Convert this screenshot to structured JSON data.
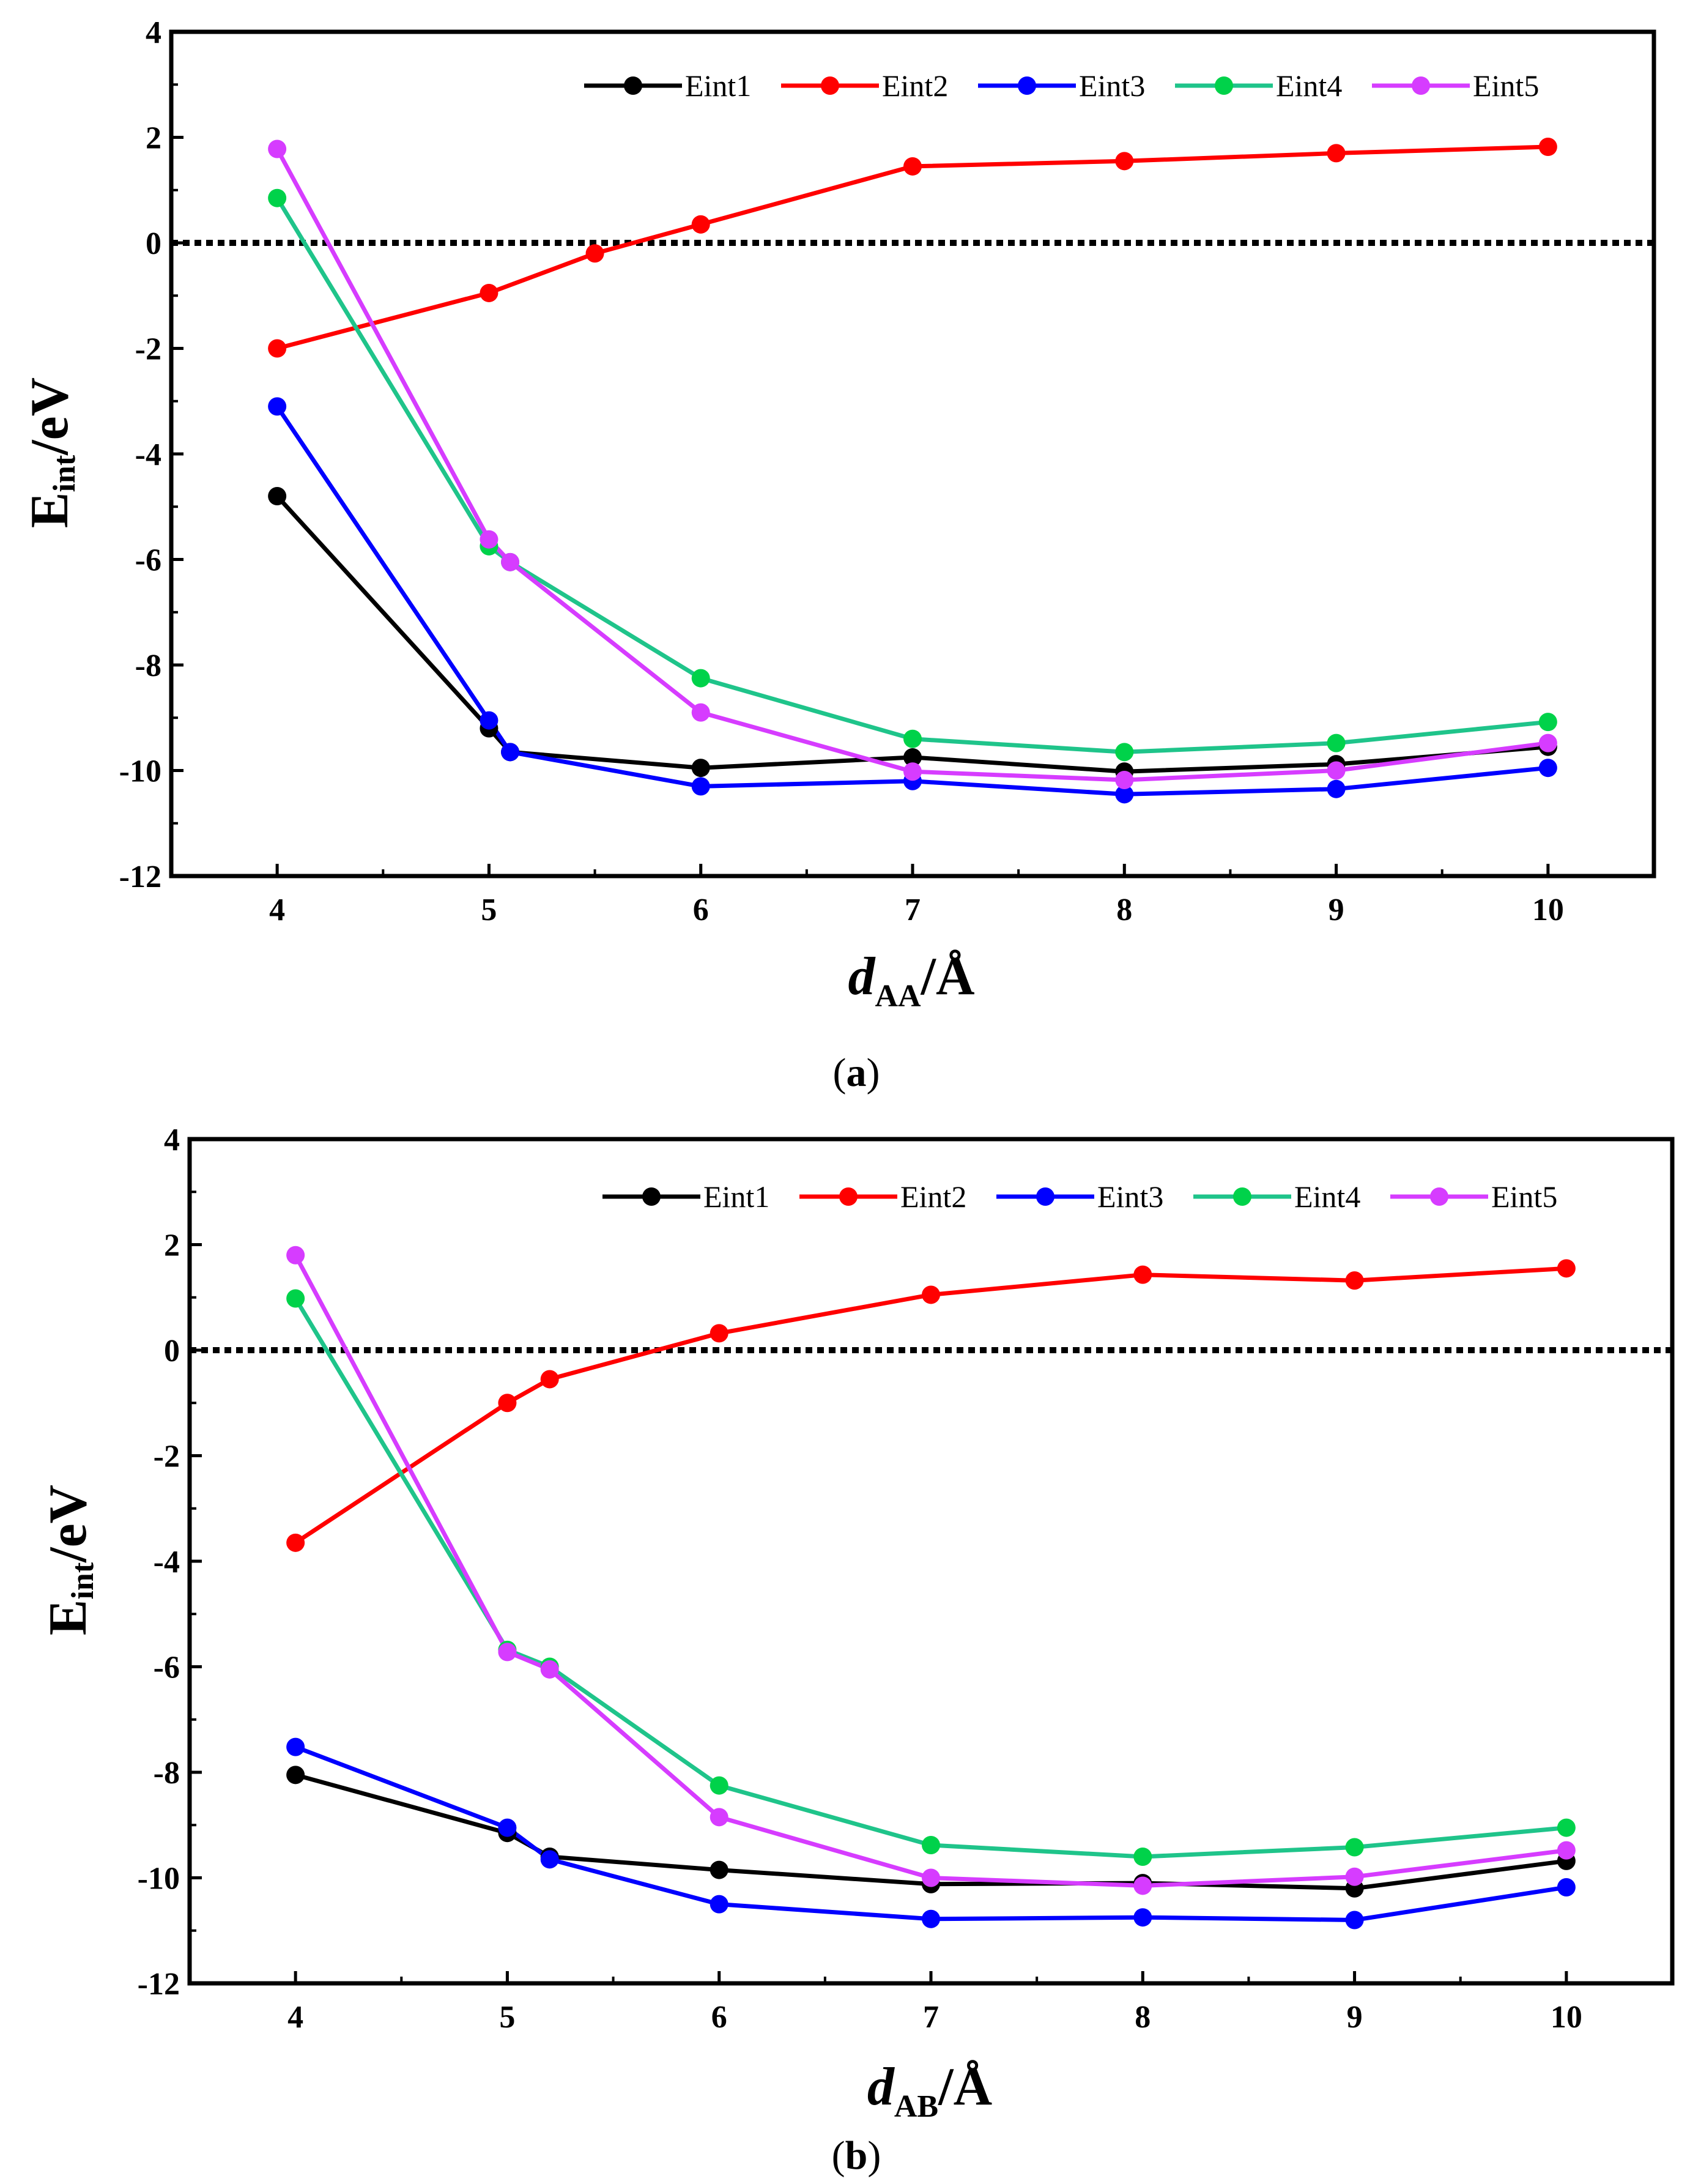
{
  "colors": {
    "Eint1": "#000000",
    "Eint2": "#ff0000",
    "Eint3": "#0000ff",
    "Eint4": "#00d24a",
    "Eint5": "#d63cff",
    "Eint4_line": "#1fc48a"
  },
  "chart_data": [
    {
      "type": "line",
      "panel": "a",
      "caption": {
        "open": "(",
        "letter": "a",
        "close": ")"
      },
      "title": "",
      "ylabel": {
        "main": "E",
        "sub": "int",
        "rest": "/eV"
      },
      "xlabel": {
        "main": "d",
        "sub": "AA",
        "rest": "/Å"
      },
      "xlim": [
        3.5,
        10.5
      ],
      "ylim": [
        -12,
        4
      ],
      "xticks": [
        4,
        5,
        6,
        7,
        8,
        9,
        10
      ],
      "yticks": [
        4,
        2,
        0,
        -2,
        -4,
        -6,
        -8,
        -10,
        -12
      ],
      "zero_line": 0,
      "legend_position": "top-right",
      "series": [
        {
          "name": "Eint1",
          "color": "#000000",
          "x": [
            4,
            5,
            5.1,
            6,
            7,
            8,
            9,
            10
          ],
          "y": [
            -4.8,
            -9.2,
            -9.65,
            -9.95,
            -9.75,
            -10.02,
            -9.88,
            -9.55
          ]
        },
        {
          "name": "Eint2",
          "color": "#ff0000",
          "x": [
            4,
            5,
            5.5,
            6,
            7,
            8,
            9,
            10
          ],
          "y": [
            -2.0,
            -0.95,
            -0.2,
            0.35,
            1.45,
            1.55,
            1.7,
            1.82
          ]
        },
        {
          "name": "Eint3",
          "color": "#0000ff",
          "x": [
            4,
            5,
            5.1,
            6,
            7,
            8,
            9,
            10
          ],
          "y": [
            -3.1,
            -9.05,
            -9.65,
            -10.3,
            -10.2,
            -10.45,
            -10.35,
            -9.95
          ]
        },
        {
          "name": "Eint4",
          "color": "#00d24a",
          "line_color": "#1fc48a",
          "x": [
            4,
            5,
            5.1,
            6,
            7,
            8,
            9,
            10
          ],
          "y": [
            0.85,
            -5.75,
            -6.05,
            -8.25,
            -9.4,
            -9.65,
            -9.48,
            -9.08
          ]
        },
        {
          "name": "Eint5",
          "color": "#d63cff",
          "x": [
            4,
            5,
            5.1,
            6,
            7,
            8,
            9,
            10
          ],
          "y": [
            1.78,
            -5.62,
            -6.05,
            -8.9,
            -10.02,
            -10.18,
            -10.0,
            -9.48
          ]
        }
      ]
    },
    {
      "type": "line",
      "panel": "b",
      "caption": {
        "open": "(",
        "letter": "b",
        "close": ")"
      },
      "title": "",
      "ylabel": {
        "main": "E",
        "sub": "int",
        "rest": "/eV"
      },
      "xlabel": {
        "main": "d",
        "sub": "AB",
        "rest": "/Å"
      },
      "xlim": [
        3.5,
        10.5
      ],
      "ylim": [
        -12,
        4
      ],
      "xticks": [
        4,
        5,
        6,
        7,
        8,
        9,
        10
      ],
      "yticks": [
        4,
        2,
        0,
        -2,
        -4,
        -6,
        -8,
        -10,
        -12
      ],
      "zero_line": 0,
      "legend_position": "top-right",
      "series": [
        {
          "name": "Eint1",
          "color": "#000000",
          "x": [
            4,
            5,
            5.2,
            6,
            7,
            8,
            9,
            10
          ],
          "y": [
            -8.05,
            -9.15,
            -9.6,
            -9.85,
            -10.12,
            -10.1,
            -10.2,
            -9.68
          ]
        },
        {
          "name": "Eint2",
          "color": "#ff0000",
          "x": [
            4,
            5,
            5.2,
            6,
            7,
            8,
            9,
            10
          ],
          "y": [
            -3.65,
            -1.0,
            -0.55,
            0.32,
            1.05,
            1.43,
            1.32,
            1.55
          ]
        },
        {
          "name": "Eint3",
          "color": "#0000ff",
          "x": [
            4,
            5,
            5.2,
            6,
            7,
            8,
            9,
            10
          ],
          "y": [
            -7.52,
            -9.05,
            -9.65,
            -10.5,
            -10.78,
            -10.75,
            -10.8,
            -10.18
          ]
        },
        {
          "name": "Eint4",
          "color": "#00d24a",
          "line_color": "#1fc48a",
          "x": [
            4,
            5,
            5.2,
            6,
            7,
            8,
            9,
            10
          ],
          "y": [
            0.98,
            -5.68,
            -6.0,
            -8.25,
            -9.38,
            -9.6,
            -9.42,
            -9.05
          ]
        },
        {
          "name": "Eint5",
          "color": "#d63cff",
          "x": [
            4,
            5,
            5.2,
            6,
            7,
            8,
            9,
            10
          ],
          "y": [
            1.8,
            -5.72,
            -6.05,
            -8.85,
            -10.0,
            -10.15,
            -9.98,
            -9.48
          ]
        }
      ]
    }
  ]
}
